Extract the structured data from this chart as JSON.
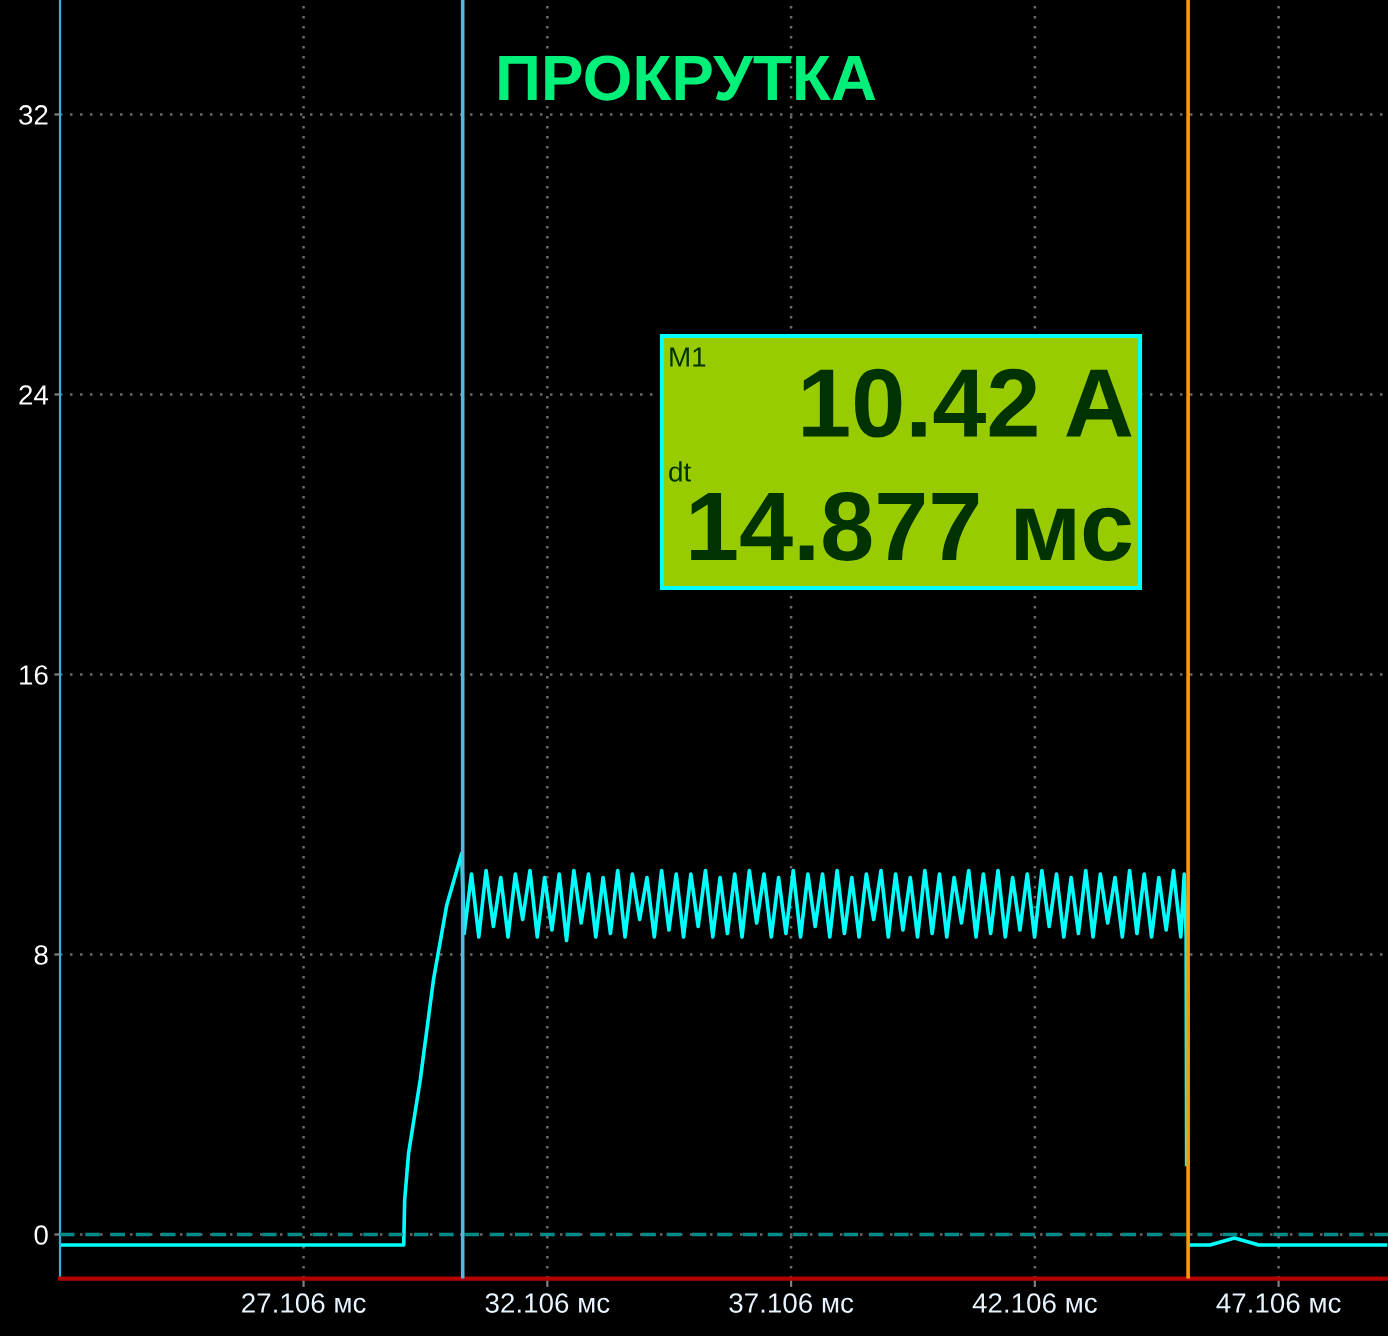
{
  "chart_data": {
    "type": "line",
    "title": "ПРОКРУТКА",
    "x": [
      22.15,
      24.0,
      26.0,
      28.0,
      29.16,
      29.18,
      29.26,
      29.5,
      29.77,
      30.04,
      30.35,
      30.4,
      30.55,
      30.7,
      30.85,
      31.0,
      31.15,
      31.3,
      31.45,
      31.6,
      31.75,
      31.9,
      32.05,
      32.2,
      32.35,
      32.5,
      32.65,
      32.8,
      32.95,
      33.1,
      33.25,
      33.4,
      33.55,
      33.7,
      33.85,
      34.0,
      34.15,
      34.3,
      34.45,
      34.6,
      34.75,
      34.9,
      35.05,
      35.2,
      35.35,
      35.5,
      35.65,
      35.8,
      35.95,
      36.1,
      36.25,
      36.4,
      36.55,
      36.7,
      36.85,
      37.0,
      37.15,
      37.3,
      37.45,
      37.6,
      37.75,
      37.9,
      38.05,
      38.2,
      38.35,
      38.5,
      38.65,
      38.8,
      38.95,
      39.1,
      39.25,
      39.4,
      39.55,
      39.7,
      39.85,
      40.0,
      40.15,
      40.3,
      40.45,
      40.6,
      40.75,
      40.9,
      41.05,
      41.2,
      41.35,
      41.5,
      41.65,
      41.8,
      41.95,
      42.1,
      42.25,
      42.4,
      42.55,
      42.7,
      42.85,
      43.0,
      43.15,
      43.3,
      43.45,
      43.6,
      43.75,
      43.9,
      44.05,
      44.2,
      44.35,
      44.5,
      44.65,
      44.8,
      44.95,
      45.1,
      45.17,
      45.21,
      45.22,
      45.25,
      45.29,
      45.7,
      45.95,
      46.2,
      46.45,
      46.7,
      49.3
    ],
    "series": [
      {
        "color": "#00ffff",
        "values": [
          -0.3,
          -0.3,
          -0.3,
          -0.3,
          -0.3,
          0.99,
          2.32,
          4.42,
          7.27,
          9.39,
          10.89,
          8.6,
          10.3,
          8.5,
          10.4,
          8.8,
          10.2,
          8.5,
          10.3,
          9.0,
          10.4,
          8.5,
          10.2,
          8.7,
          10.3,
          8.4,
          10.4,
          8.9,
          10.3,
          8.5,
          10.2,
          8.6,
          10.4,
          8.5,
          10.3,
          9.0,
          10.2,
          8.5,
          10.4,
          8.7,
          10.3,
          8.5,
          10.3,
          8.8,
          10.4,
          8.5,
          10.2,
          8.6,
          10.3,
          8.5,
          10.4,
          8.9,
          10.3,
          8.5,
          10.2,
          8.6,
          10.4,
          8.5,
          10.3,
          8.8,
          10.3,
          8.5,
          10.4,
          8.6,
          10.2,
          8.5,
          10.3,
          9.0,
          10.4,
          8.5,
          10.3,
          8.7,
          10.2,
          8.5,
          10.4,
          8.6,
          10.3,
          8.5,
          10.2,
          8.9,
          10.4,
          8.5,
          10.3,
          8.6,
          10.4,
          8.5,
          10.2,
          8.7,
          10.3,
          8.5,
          10.4,
          8.8,
          10.3,
          8.5,
          10.2,
          8.6,
          10.4,
          8.5,
          10.3,
          8.9,
          10.2,
          8.5,
          10.4,
          8.6,
          10.3,
          8.5,
          10.2,
          8.7,
          10.4,
          8.5,
          10.3,
          8.5,
          2.0,
          null,
          -0.3,
          -0.3,
          -0.2,
          -0.1,
          -0.2,
          -0.3,
          -0.3
        ]
      }
    ],
    "xlim": [
      22.11,
      49.35
    ],
    "ylim": [
      -1.26,
      35.27
    ],
    "xticks": [
      {
        "value": 27.106,
        "label": "27.106 мс"
      },
      {
        "value": 32.106,
        "label": "32.106 мс"
      },
      {
        "value": 37.106,
        "label": "37.106 мс"
      },
      {
        "value": 42.106,
        "label": "42.106 мс"
      },
      {
        "value": 47.106,
        "label": "47.106 мс"
      }
    ],
    "yticks": [
      0,
      8,
      16,
      24,
      32
    ],
    "grid": true,
    "ref_lines": [
      {
        "axis": "y",
        "value": 0,
        "color": "#008b8b",
        "line_style": "dashed"
      },
      {
        "axis": "x",
        "value": 30.37,
        "color": "#5ab8dc"
      },
      {
        "axis": "x",
        "value": 45.25,
        "color": "#ff9900"
      }
    ],
    "annotations": [
      "M1",
      "10.42 A",
      "dt",
      "14.877 мс"
    ]
  }
}
